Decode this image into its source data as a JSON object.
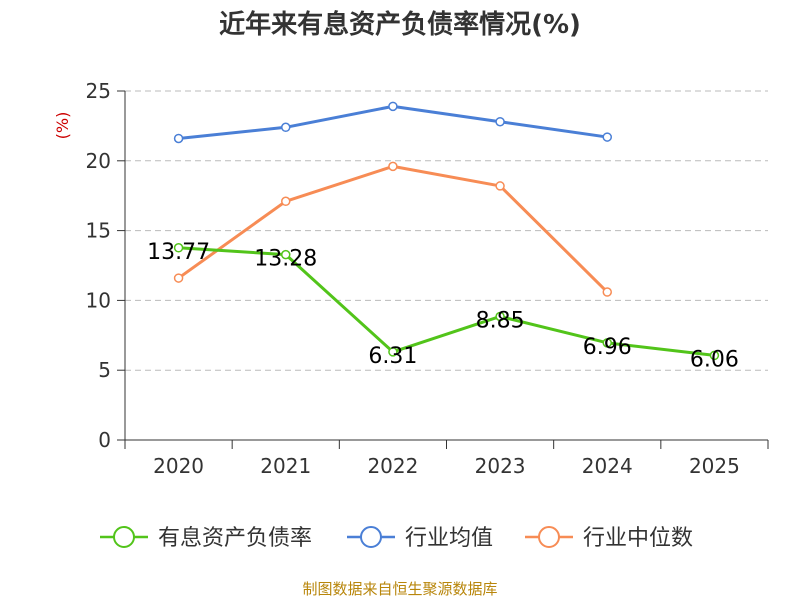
{
  "title": "近年来有息资产负债率情况(%)",
  "footer": "制图数据来自恒生聚源数据库",
  "colors": {
    "title": "#333333",
    "unit": "#cc0000",
    "axis": "#333333",
    "grid": "#bbbbbb",
    "footer": "#b8860b"
  },
  "chart_data": {
    "type": "line",
    "title": "近年来有息资产负债率情况(%)",
    "ylabel": "(%)",
    "xlabel": "",
    "ylim": [
      0,
      25
    ],
    "y_ticks": [
      0,
      5,
      10,
      15,
      20,
      25
    ],
    "categories": [
      "2020",
      "2021",
      "2022",
      "2023",
      "2024",
      "2025"
    ],
    "grid": "horizontal dashed",
    "legend_position": "bottom",
    "series": [
      {
        "name": "有息资产负债率",
        "color": "#52c41a",
        "values": [
          13.77,
          13.28,
          6.31,
          8.85,
          6.96,
          6.06
        ],
        "labels": [
          "13.77",
          "13.28",
          "6.31",
          "8.85",
          "6.96",
          "6.06"
        ]
      },
      {
        "name": "行业均值",
        "color": "#4a7fd6",
        "values": [
          21.6,
          22.4,
          23.9,
          22.8,
          21.7,
          null
        ]
      },
      {
        "name": "行业中位数",
        "color": "#f78c55",
        "values": [
          11.6,
          17.1,
          19.6,
          18.2,
          10.6,
          null
        ]
      }
    ]
  }
}
